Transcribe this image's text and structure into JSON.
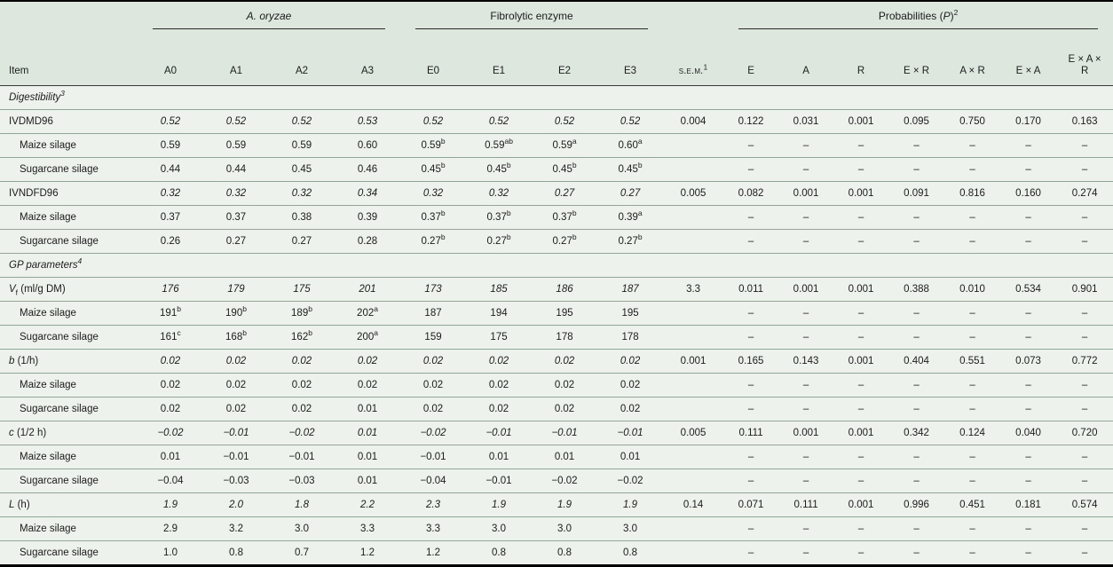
{
  "colors": {
    "header_bg": "#dde7de",
    "body_bg": "#edf2ec",
    "row_rule": "#93a594",
    "strong_rule": "#000000"
  },
  "table": {
    "item_header": "Item",
    "groups": [
      {
        "label": "*A. oryzae*",
        "span": 4
      },
      {
        "label": "Fibrolytic enzyme",
        "span": 4
      },
      {
        "label": "Probabilities (*P*)^2^",
        "span": 7
      }
    ],
    "columns": [
      "A0",
      "A1",
      "A2",
      "A3",
      "E0",
      "E1",
      "E2",
      "E3",
      "s.e.m.^1^",
      "E",
      "A",
      "R",
      "E × R",
      "A × R",
      "E × A",
      "E × A ×\nR"
    ],
    "rows": [
      {
        "type": "section",
        "label": "*Digestibility*^3^",
        "values": [
          "",
          "",
          "",
          "",
          "",
          "",
          "",
          "",
          "",
          "",
          "",
          "",
          "",
          "",
          "",
          ""
        ]
      },
      {
        "type": "param",
        "label": "IVDMD96",
        "values": [
          "0.52",
          "0.52",
          "0.52",
          "0.53",
          "0.52",
          "0.52",
          "0.52",
          "0.52",
          "0.004",
          "0.122",
          "0.031",
          "0.001",
          "0.095",
          "0.750",
          "0.170",
          "0.163"
        ]
      },
      {
        "type": "sub",
        "label": "Maize silage",
        "values": [
          "0.59",
          "0.59",
          "0.59",
          "0.60",
          "0.59^b^",
          "0.59^ab^",
          "0.59^a^",
          "0.60^a^",
          "",
          "–",
          "–",
          "–",
          "–",
          "–",
          "–",
          "–"
        ]
      },
      {
        "type": "sub",
        "label": "Sugarcane silage",
        "values": [
          "0.44",
          "0.44",
          "0.45",
          "0.46",
          "0.45^b^",
          "0.45^b^",
          "0.45^b^",
          "0.45^b^",
          "",
          "–",
          "–",
          "–",
          "–",
          "–",
          "–",
          "–"
        ]
      },
      {
        "type": "param",
        "label": "IVNDFD96",
        "values": [
          "0.32",
          "0.32",
          "0.32",
          "0.34",
          "0.32",
          "0.32",
          "0.27",
          "0.27",
          "0.005",
          "0.082",
          "0.001",
          "0.001",
          "0.091",
          "0.816",
          "0.160",
          "0.274"
        ]
      },
      {
        "type": "sub",
        "label": "Maize silage",
        "values": [
          "0.37",
          "0.37",
          "0.38",
          "0.39",
          "0.37^b^",
          "0.37^b^",
          "0.37^b^",
          "0.39^a^",
          "",
          "–",
          "–",
          "–",
          "–",
          "–",
          "–",
          "–"
        ]
      },
      {
        "type": "sub",
        "label": "Sugarcane silage",
        "values": [
          "0.26",
          "0.27",
          "0.27",
          "0.28",
          "0.27^b^",
          "0.27^b^",
          "0.27^b^",
          "0.27^b^",
          "",
          "–",
          "–",
          "–",
          "–",
          "–",
          "–",
          "–"
        ]
      },
      {
        "type": "section",
        "label": "*GP parameters*^4^",
        "values": [
          "",
          "",
          "",
          "",
          "",
          "",
          "",
          "",
          "",
          "",
          "",
          "",
          "",
          "",
          "",
          ""
        ]
      },
      {
        "type": "param",
        "label": "*V*~f~ (ml/g DM)",
        "values": [
          "176",
          "179",
          "175",
          "201",
          "173",
          "185",
          "186",
          "187",
          "3.3",
          "0.011",
          "0.001",
          "0.001",
          "0.388",
          "0.010",
          "0.534",
          "0.901"
        ]
      },
      {
        "type": "sub",
        "label": "Maize silage",
        "values": [
          "191^b^",
          "190^b^",
          "189^b^",
          "202^a^",
          "187",
          "194",
          "195",
          "195",
          "",
          "–",
          "–",
          "–",
          "–",
          "–",
          "–",
          "–"
        ]
      },
      {
        "type": "sub",
        "label": "Sugarcane silage",
        "values": [
          "161^c^",
          "168^b^",
          "162^b^",
          "200^a^",
          "159",
          "175",
          "178",
          "178",
          "",
          "–",
          "–",
          "–",
          "–",
          "–",
          "–",
          "–"
        ]
      },
      {
        "type": "param",
        "label": "*b* (1/h)",
        "values": [
          "0.02",
          "0.02",
          "0.02",
          "0.02",
          "0.02",
          "0.02",
          "0.02",
          "0.02",
          "0.001",
          "0.165",
          "0.143",
          "0.001",
          "0.404",
          "0.551",
          "0.073",
          "0.772"
        ]
      },
      {
        "type": "sub",
        "label": "Maize silage",
        "values": [
          "0.02",
          "0.02",
          "0.02",
          "0.02",
          "0.02",
          "0.02",
          "0.02",
          "0.02",
          "",
          "–",
          "–",
          "–",
          "–",
          "–",
          "–",
          "–"
        ]
      },
      {
        "type": "sub",
        "label": "Sugarcane silage",
        "values": [
          "0.02",
          "0.02",
          "0.02",
          "0.01",
          "0.02",
          "0.02",
          "0.02",
          "0.02",
          "",
          "–",
          "–",
          "–",
          "–",
          "–",
          "–",
          "–"
        ]
      },
      {
        "type": "param",
        "label": "*c* (1/2 h)",
        "values": [
          "−0.02",
          "−0.01",
          "−0.02",
          "0.01",
          "−0.02",
          "−0.01",
          "−0.01",
          "−0.01",
          "0.005",
          "0.111",
          "0.001",
          "0.001",
          "0.342",
          "0.124",
          "0.040",
          "0.720"
        ]
      },
      {
        "type": "sub",
        "label": "Maize silage",
        "values": [
          "0.01",
          "−0.01",
          "−0.01",
          "0.01",
          "−0.01",
          "0.01",
          "0.01",
          "0.01",
          "",
          "–",
          "–",
          "–",
          "–",
          "–",
          "–",
          "–"
        ]
      },
      {
        "type": "sub",
        "label": "Sugarcane silage",
        "values": [
          "−0.04",
          "−0.03",
          "−0.03",
          "0.01",
          "−0.04",
          "−0.01",
          "−0.02",
          "−0.02",
          "",
          "–",
          "–",
          "–",
          "–",
          "–",
          "–",
          "–"
        ]
      },
      {
        "type": "param",
        "label": "*L* (h)",
        "values": [
          "1.9",
          "2.0",
          "1.8",
          "2.2",
          "2.3",
          "1.9",
          "1.9",
          "1.9",
          "0.14",
          "0.071",
          "0.111",
          "0.001",
          "0.996",
          "0.451",
          "0.181",
          "0.574"
        ]
      },
      {
        "type": "sub",
        "label": "Maize silage",
        "values": [
          "2.9",
          "3.2",
          "3.0",
          "3.3",
          "3.3",
          "3.0",
          "3.0",
          "3.0",
          "",
          "–",
          "–",
          "–",
          "–",
          "–",
          "–",
          "–"
        ]
      },
      {
        "type": "sub",
        "label": "Sugarcane silage",
        "values": [
          "1.0",
          "0.8",
          "0.7",
          "1.2",
          "1.2",
          "0.8",
          "0.8",
          "0.8",
          "",
          "–",
          "–",
          "–",
          "–",
          "–",
          "–",
          "–"
        ]
      }
    ]
  }
}
